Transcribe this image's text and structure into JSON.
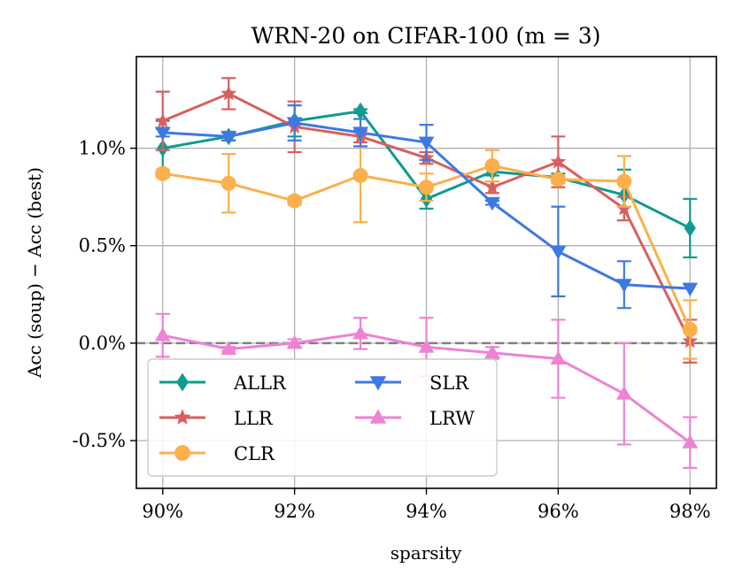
{
  "chart_data": {
    "type": "line",
    "title": "WRN-20 on CIFAR-100 (m = 3)",
    "xlabel": "sparsity",
    "ylabel": "Acc (soup) − Acc (best)",
    "x": [
      90,
      91,
      92,
      93,
      94,
      95,
      96,
      97,
      98
    ],
    "xticks": [
      90,
      92,
      94,
      96,
      98
    ],
    "xtick_labels": [
      "90%",
      "92%",
      "94%",
      "96%",
      "98%"
    ],
    "xlim": [
      89.6,
      98.4
    ],
    "yticks": [
      -0.5,
      0.0,
      0.5,
      1.0
    ],
    "ytick_labels": [
      "-0.5%",
      "0.0%",
      "0.5%",
      "1.0%"
    ],
    "ylim": [
      -0.745,
      1.47
    ],
    "grid": true,
    "reference_line": {
      "y": 0.0,
      "style": "dashed",
      "color": "#808080"
    },
    "legend": {
      "placement": "lower-left",
      "columns": 2
    },
    "series": [
      {
        "name": "ALLR",
        "color": "#0f9b8e",
        "marker": "diamond",
        "values": [
          1.0,
          1.06,
          1.14,
          1.19,
          0.74,
          0.88,
          0.85,
          0.76,
          0.59
        ],
        "errors": [
          0.14,
          0.02,
          0.08,
          0.01,
          0.05,
          0.02,
          0.02,
          0.13,
          0.15
        ]
      },
      {
        "name": "LLR",
        "color": "#d95f5f",
        "marker": "star",
        "values": [
          1.14,
          1.28,
          1.11,
          1.06,
          0.95,
          0.8,
          0.93,
          0.69,
          0.01
        ],
        "errors": [
          0.15,
          0.08,
          0.13,
          0.03,
          0.03,
          0.03,
          0.13,
          0.06,
          0.11
        ]
      },
      {
        "name": "CLR",
        "color": "#fbb04b",
        "marker": "circle",
        "values": [
          0.87,
          0.82,
          0.73,
          0.86,
          0.8,
          0.91,
          0.84,
          0.83,
          0.07
        ],
        "errors": [
          0.02,
          0.15,
          0.02,
          0.24,
          0.07,
          0.08,
          0.02,
          0.13,
          0.15
        ]
      },
      {
        "name": "SLR",
        "color": "#3d79e0",
        "marker": "triangle-down",
        "values": [
          1.08,
          1.06,
          1.13,
          1.08,
          1.03,
          0.72,
          0.47,
          0.3,
          0.28
        ],
        "errors": [
          0.02,
          0.02,
          0.09,
          0.07,
          0.09,
          0.01,
          0.23,
          0.12,
          0.0
        ]
      },
      {
        "name": "LRW",
        "color": "#ee82d4",
        "marker": "triangle-up",
        "values": [
          0.04,
          -0.03,
          0.0,
          0.05,
          -0.02,
          -0.05,
          -0.08,
          -0.26,
          -0.51
        ],
        "errors": [
          0.11,
          0.01,
          0.02,
          0.08,
          0.15,
          0.03,
          0.2,
          0.26,
          0.13
        ]
      }
    ]
  }
}
